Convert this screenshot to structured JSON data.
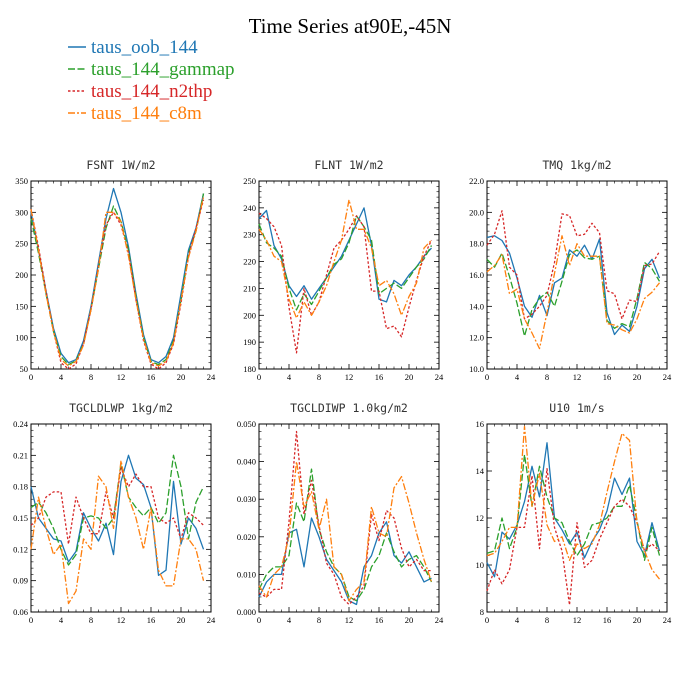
{
  "figure": {
    "title": "Time Series at90E,-45N"
  },
  "legend": [
    {
      "name": "taus_oob_144",
      "color": "#1f77b4",
      "dash": ""
    },
    {
      "name": "taus_144_gammap",
      "color": "#2ca02c",
      "dash": "7,2.5"
    },
    {
      "name": "taus_144_n2thp",
      "color": "#d62728",
      "dash": "2.5,2"
    },
    {
      "name": "taus_144_c8m",
      "color": "#ff7f0e",
      "dash": "7,2,2,2"
    }
  ],
  "chart_data": [
    {
      "type": "line",
      "title": "FSNT   1W/m2",
      "x": [
        0,
        1,
        2,
        3,
        4,
        5,
        6,
        7,
        8,
        9,
        10,
        11,
        12,
        13,
        14,
        15,
        16,
        17,
        18,
        19,
        20,
        21,
        22,
        23
      ],
      "xlim": [
        0,
        24
      ],
      "ylim": [
        50,
        350
      ],
      "xticks": [
        0,
        4,
        8,
        12,
        16,
        20,
        24
      ],
      "xtick_labels": [
        "0",
        "4",
        "8",
        "12",
        "16",
        "20",
        "24"
      ],
      "yticks": [
        50,
        100,
        150,
        200,
        250,
        300,
        350
      ],
      "ytick_labels": [
        "50",
        "100",
        "150",
        "200",
        "250",
        "300",
        "350"
      ],
      "series": [
        {
          "values": [
            300,
            240,
            175,
            115,
            75,
            60,
            65,
            95,
            150,
            220,
            290,
            338,
            300,
            245,
            170,
            105,
            65,
            60,
            70,
            100,
            170,
            240,
            275,
            330
          ]
        },
        {
          "values": [
            290,
            235,
            170,
            110,
            70,
            57,
            63,
            90,
            145,
            210,
            275,
            310,
            285,
            240,
            165,
            100,
            62,
            57,
            65,
            95,
            160,
            235,
            270,
            330
          ]
        },
        {
          "values": [
            305,
            245,
            175,
            110,
            60,
            50,
            58,
            90,
            145,
            215,
            280,
            300,
            280,
            235,
            160,
            95,
            58,
            50,
            60,
            90,
            155,
            230,
            275,
            320
          ]
        },
        {
          "values": [
            305,
            240,
            170,
            110,
            65,
            55,
            62,
            88,
            145,
            210,
            300,
            300,
            285,
            230,
            160,
            98,
            60,
            55,
            62,
            92,
            160,
            228,
            270,
            325
          ]
        }
      ]
    },
    {
      "type": "line",
      "title": "FLNT   1W/m2",
      "x": [
        0,
        1,
        2,
        3,
        4,
        5,
        6,
        7,
        8,
        9,
        10,
        11,
        12,
        13,
        14,
        15,
        16,
        17,
        18,
        19,
        20,
        21,
        22,
        23
      ],
      "xlim": [
        0,
        24
      ],
      "ylim": [
        180,
        250
      ],
      "xticks": [
        0,
        4,
        8,
        12,
        16,
        20,
        24
      ],
      "xtick_labels": [
        "0",
        "4",
        "8",
        "12",
        "16",
        "20",
        "24"
      ],
      "yticks": [
        180,
        190,
        200,
        210,
        220,
        230,
        240,
        250
      ],
      "ytick_labels": [
        "180",
        "190",
        "200",
        "210",
        "220",
        "230",
        "240",
        "250"
      ],
      "series": [
        {
          "values": [
            236,
            239,
            226,
            221,
            211,
            207,
            211,
            206,
            210,
            214,
            218,
            222,
            228,
            234,
            240,
            226,
            206,
            205,
            213,
            211,
            215,
            218,
            222,
            225
          ]
        },
        {
          "values": [
            234,
            227,
            225,
            222,
            210,
            202,
            208,
            204,
            209,
            214,
            219,
            221,
            227,
            237,
            233,
            228,
            208,
            210,
            212,
            210,
            214,
            218,
            221,
            226
          ]
        },
        {
          "values": [
            238,
            236,
            233,
            226,
            203,
            186,
            210,
            200,
            205,
            215,
            225,
            228,
            232,
            237,
            233,
            209,
            209,
            195,
            196,
            192,
            203,
            213,
            222,
            228
          ]
        },
        {
          "values": [
            232,
            228,
            222,
            220,
            206,
            199,
            205,
            200,
            205,
            211,
            220,
            228,
            243,
            232,
            232,
            225,
            211,
            213,
            208,
            200,
            207,
            212,
            225,
            228
          ]
        }
      ]
    },
    {
      "type": "line",
      "title": "TMQ   1kg/m2",
      "x": [
        0,
        1,
        2,
        3,
        4,
        5,
        6,
        7,
        8,
        9,
        10,
        11,
        12,
        13,
        14,
        15,
        16,
        17,
        18,
        19,
        20,
        21,
        22,
        23
      ],
      "xlim": [
        0,
        24
      ],
      "ylim": [
        10,
        22
      ],
      "xticks": [
        0,
        4,
        8,
        12,
        16,
        20,
        24
      ],
      "xtick_labels": [
        "0",
        "4",
        "8",
        "12",
        "16",
        "20",
        "24"
      ],
      "yticks": [
        10,
        12,
        14,
        16,
        18,
        20,
        22
      ],
      "ytick_labels": [
        "10.0",
        "12.0",
        "14.0",
        "16.0",
        "18.0",
        "20.0",
        "22.0"
      ],
      "series": [
        {
          "values": [
            18.4,
            18.5,
            18.2,
            17.4,
            15.8,
            14.0,
            13.3,
            14.7,
            13.4,
            15.5,
            15.8,
            17.6,
            17.2,
            17.9,
            17.0,
            18.3,
            13.6,
            12.2,
            12.8,
            12.4,
            14.0,
            16.4,
            17.0,
            15.8
          ]
        },
        {
          "values": [
            17.0,
            16.5,
            17.4,
            15.9,
            14.2,
            12.1,
            13.8,
            14.5,
            14.9,
            14.0,
            15.6,
            17.3,
            17.6,
            17.1,
            17.0,
            17.2,
            13.1,
            12.6,
            12.9,
            12.7,
            14.5,
            16.8,
            16.4,
            15.6
          ]
        },
        {
          "values": [
            17.9,
            18.6,
            20.1,
            16.5,
            16.0,
            13.2,
            13.5,
            14.0,
            14.7,
            16.8,
            19.9,
            19.8,
            18.5,
            18.6,
            19.3,
            18.7,
            15.0,
            14.8,
            13.2,
            14.4,
            14.3,
            16.6,
            16.7,
            17.5
          ]
        },
        {
          "values": [
            16.2,
            16.6,
            17.3,
            14.8,
            15.1,
            13.2,
            12.3,
            11.3,
            13.6,
            16.1,
            18.5,
            16.6,
            18.0,
            17.2,
            17.2,
            17.2,
            12.9,
            12.8,
            12.5,
            12.3,
            13.2,
            14.5,
            14.9,
            15.5
          ]
        }
      ]
    },
    {
      "type": "line",
      "title": "TGCLDLWP   1kg/m2",
      "x": [
        0,
        1,
        2,
        3,
        4,
        5,
        6,
        7,
        8,
        9,
        10,
        11,
        12,
        13,
        14,
        15,
        16,
        17,
        18,
        19,
        20,
        21,
        22,
        23
      ],
      "xlim": [
        0,
        24
      ],
      "ylim": [
        0.06,
        0.24
      ],
      "xticks": [
        0,
        4,
        8,
        12,
        16,
        20,
        24
      ],
      "xtick_labels": [
        "0",
        "4",
        "8",
        "12",
        "16",
        "20",
        "24"
      ],
      "yticks": [
        0.06,
        0.09,
        0.12,
        0.15,
        0.18,
        0.21,
        0.24
      ],
      "ytick_labels": [
        "0.06",
        "0.09",
        "0.12",
        "0.15",
        "0.18",
        "0.21",
        "0.24"
      ],
      "series": [
        {
          "values": [
            0.18,
            0.15,
            0.14,
            0.13,
            0.128,
            0.108,
            0.118,
            0.155,
            0.14,
            0.128,
            0.145,
            0.115,
            0.185,
            0.21,
            0.188,
            0.182,
            0.16,
            0.095,
            0.1,
            0.185,
            0.125,
            0.15,
            0.14,
            0.12
          ]
        },
        {
          "values": [
            0.16,
            0.165,
            0.155,
            0.14,
            0.12,
            0.105,
            0.115,
            0.15,
            0.152,
            0.15,
            0.14,
            0.15,
            0.202,
            0.17,
            0.16,
            0.152,
            0.16,
            0.145,
            0.155,
            0.21,
            0.18,
            0.13,
            0.165,
            0.18
          ]
        },
        {
          "values": [
            0.143,
            0.15,
            0.17,
            0.175,
            0.175,
            0.125,
            0.17,
            0.15,
            0.135,
            0.135,
            0.175,
            0.15,
            0.198,
            0.18,
            0.192,
            0.18,
            0.18,
            0.15,
            0.145,
            0.15,
            0.13,
            0.155,
            0.15,
            0.143
          ]
        },
        {
          "values": [
            0.12,
            0.17,
            0.14,
            0.115,
            0.125,
            0.068,
            0.08,
            0.13,
            0.12,
            0.19,
            0.18,
            0.14,
            0.205,
            0.17,
            0.15,
            0.12,
            0.16,
            0.1,
            0.085,
            0.085,
            0.13,
            0.13,
            0.12,
            0.09
          ]
        }
      ]
    },
    {
      "type": "line",
      "title": "TGCLDIWP   1.0kg/m2",
      "x": [
        0,
        1,
        2,
        3,
        4,
        5,
        6,
        7,
        8,
        9,
        10,
        11,
        12,
        13,
        14,
        15,
        16,
        17,
        18,
        19,
        20,
        21,
        22,
        23
      ],
      "xlim": [
        0,
        24
      ],
      "ylim": [
        0.0,
        0.05
      ],
      "xticks": [
        0,
        4,
        8,
        12,
        16,
        20,
        24
      ],
      "xtick_labels": [
        "0",
        "4",
        "8",
        "12",
        "16",
        "20",
        "24"
      ],
      "yticks": [
        0.0,
        0.01,
        0.02,
        0.03,
        0.04,
        0.05
      ],
      "ytick_labels": [
        "0.000",
        "0.010",
        "0.020",
        "0.030",
        "0.040",
        "0.050"
      ],
      "series": [
        {
          "values": [
            0.004,
            0.008,
            0.01,
            0.01,
            0.021,
            0.022,
            0.012,
            0.025,
            0.02,
            0.014,
            0.011,
            0.008,
            0.003,
            0.002,
            0.012,
            0.015,
            0.021,
            0.024,
            0.015,
            0.013,
            0.016,
            0.012,
            0.008,
            0.009
          ]
        },
        {
          "values": [
            0.006,
            0.01,
            0.012,
            0.012,
            0.015,
            0.029,
            0.024,
            0.038,
            0.022,
            0.016,
            0.012,
            0.01,
            0.004,
            0.003,
            0.006,
            0.012,
            0.015,
            0.021,
            0.016,
            0.012,
            0.014,
            0.015,
            0.012,
            0.008
          ]
        },
        {
          "values": [
            0.005,
            0.004,
            0.006,
            0.006,
            0.024,
            0.048,
            0.026,
            0.035,
            0.023,
            0.013,
            0.01,
            0.004,
            0.002,
            0.004,
            0.007,
            0.026,
            0.019,
            0.027,
            0.025,
            0.017,
            0.012,
            0.014,
            0.011,
            0.011
          ]
        },
        {
          "values": [
            0.007,
            0.004,
            0.01,
            0.012,
            0.02,
            0.04,
            0.028,
            0.032,
            0.022,
            0.03,
            0.012,
            0.01,
            0.003,
            0.006,
            0.008,
            0.028,
            0.021,
            0.02,
            0.033,
            0.036,
            0.029,
            0.021,
            0.014,
            0.008
          ]
        }
      ]
    },
    {
      "type": "line",
      "title": "U10   1m/s",
      "x": [
        0,
        1,
        2,
        3,
        4,
        5,
        6,
        7,
        8,
        9,
        10,
        11,
        12,
        13,
        14,
        15,
        16,
        17,
        18,
        19,
        20,
        21,
        22,
        23
      ],
      "xlim": [
        0,
        24
      ],
      "ylim": [
        8,
        16
      ],
      "xticks": [
        0,
        4,
        8,
        12,
        16,
        20,
        24
      ],
      "xtick_labels": [
        "0",
        "4",
        "8",
        "12",
        "16",
        "20",
        "24"
      ],
      "yticks": [
        8,
        10,
        12,
        14,
        16
      ],
      "ytick_labels": [
        "8",
        "10",
        "12",
        "14",
        "16"
      ],
      "series": [
        {
          "values": [
            10.1,
            9.5,
            11.4,
            11.1,
            11.7,
            12.7,
            14.2,
            12.9,
            15.2,
            12.0,
            11.5,
            10.9,
            11.4,
            10.3,
            11.0,
            11.5,
            12.3,
            13.7,
            13.0,
            13.7,
            11.0,
            10.4,
            11.8,
            10.6
          ]
        },
        {
          "values": [
            10.5,
            10.6,
            12.0,
            10.7,
            11.6,
            14.7,
            12.5,
            14.2,
            12.9,
            12.0,
            11.8,
            11.0,
            10.4,
            10.9,
            11.7,
            11.8,
            12.0,
            12.5,
            12.5,
            13.4,
            11.9,
            10.2,
            11.6,
            10.4
          ]
        },
        {
          "values": [
            8.9,
            9.8,
            9.2,
            9.8,
            11.6,
            11.6,
            13.8,
            10.7,
            14.1,
            11.6,
            10.6,
            8.3,
            11.8,
            9.9,
            10.2,
            11.1,
            11.8,
            12.5,
            12.8,
            12.5,
            11.8,
            10.6,
            10.9,
            10.6
          ]
        },
        {
          "values": [
            10.4,
            10.5,
            11.0,
            11.6,
            11.6,
            15.9,
            12.5,
            13.9,
            11.7,
            11.0,
            11.2,
            10.2,
            10.9,
            10.7,
            10.9,
            11.7,
            13.1,
            14.4,
            15.6,
            15.3,
            11.8,
            10.6,
            9.8,
            9.4
          ]
        }
      ]
    }
  ]
}
